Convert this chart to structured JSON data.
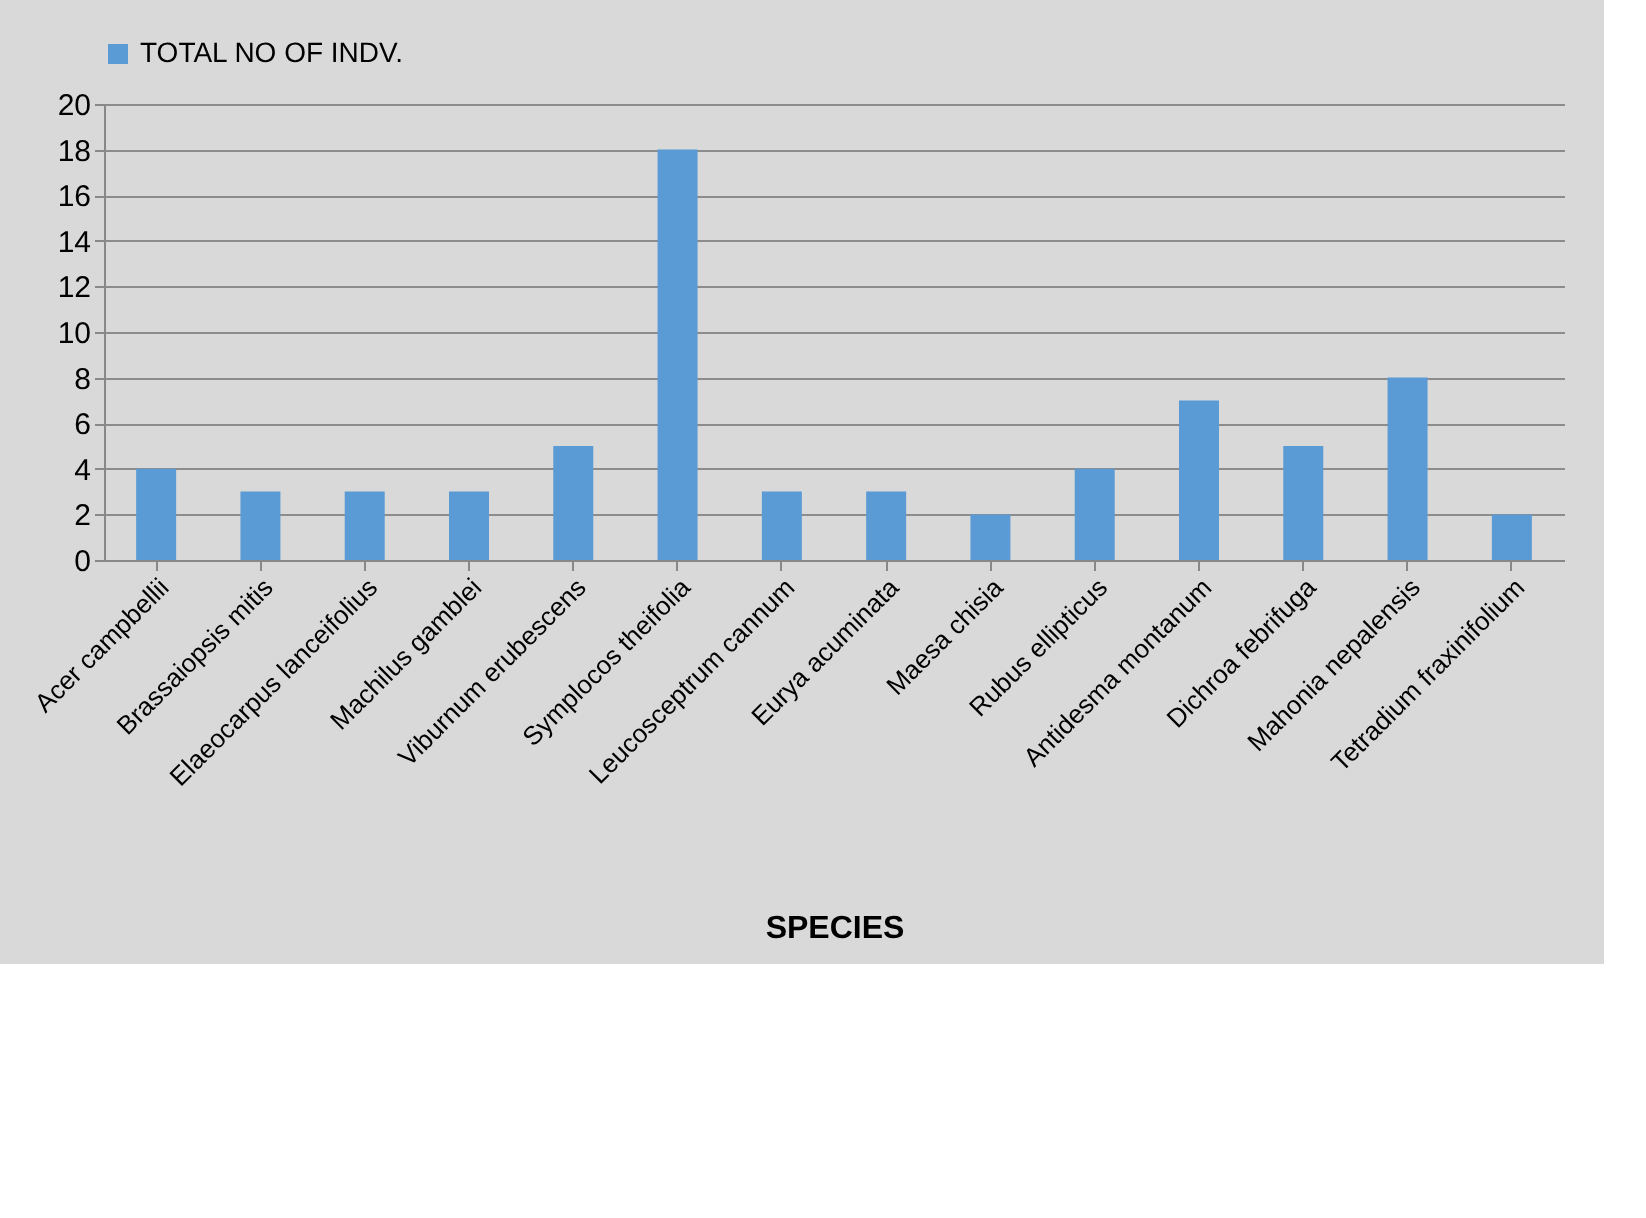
{
  "chart_data": {
    "type": "bar",
    "xlabel": "SPECIES",
    "categories": [
      "Acer campbellii",
      "Brassaiopsis mitis",
      "Elaeocarpus lanceifolius",
      "Machilus gamblei",
      "Viburnum erubescens",
      "Symplocos theifolia",
      "Leucosceptrum cannum",
      "Eurya acuminata",
      "Maesa chisia",
      "Rubus ellipticus",
      "Antidesma montanum",
      "Dichroa febrifuga",
      "Mahonia nepalensis",
      "Tetradium fraxinifolium"
    ],
    "series": [
      {
        "name": "TOTAL NO OF INDV.",
        "color": "#5b9bd5",
        "values": [
          4,
          3,
          3,
          3,
          5,
          18,
          3,
          3,
          2,
          4,
          7,
          5,
          8,
          2
        ]
      }
    ],
    "ylim": [
      0,
      20
    ],
    "yticks": [
      0,
      2,
      4,
      6,
      8,
      10,
      12,
      14,
      16,
      18,
      20
    ],
    "grid": "y",
    "legend": "top"
  }
}
